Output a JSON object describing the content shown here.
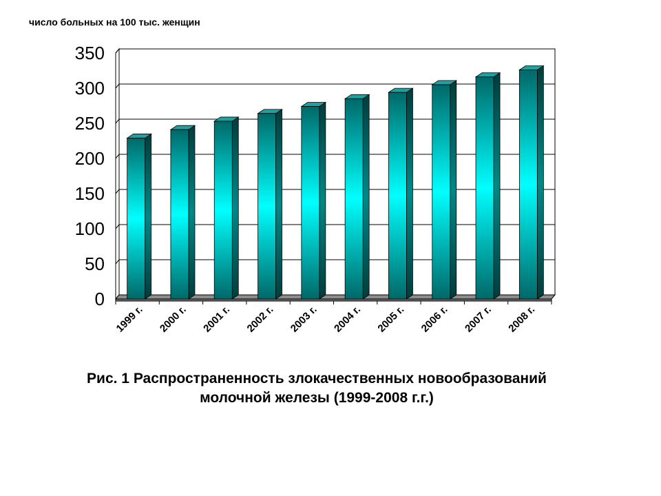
{
  "chart_data": {
    "type": "bar",
    "ylabel": "число больных на 100 тыс. женщин",
    "categories": [
      "1999 г.",
      "2000 г.",
      "2001 г.",
      "2002 г.",
      "2003 г.",
      "2004 г.",
      "2005 г.",
      "2006 г.",
      "2007 г.",
      "2008 г."
    ],
    "values": [
      229,
      241,
      253,
      264,
      274,
      285,
      294,
      305,
      316,
      326
    ],
    "ylim": [
      0,
      350
    ],
    "yticks": [
      "0",
      "50",
      "100",
      "150",
      "200",
      "250",
      "300",
      "350"
    ],
    "grid": true,
    "legend": "none",
    "colors": {
      "bar_edge": "#006060",
      "bar_center": "#00ffff",
      "bar_top": "#20a0a0",
      "bar_side": "#004848",
      "floor": "#8c8c8c"
    }
  },
  "caption": {
    "line1": "Рис. 1  Распространенность злокачественных новообразований",
    "line2": "молочной железы (1999-2008 г.г.)"
  }
}
